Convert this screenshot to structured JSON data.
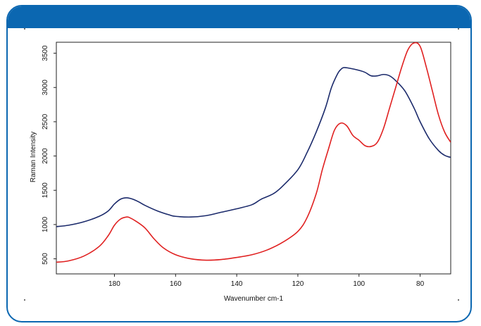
{
  "colors": {
    "frame": "#0b67b1",
    "series_navy": "#1b2a6b",
    "series_red": "#e02020"
  },
  "chart_data": {
    "type": "line",
    "title": "",
    "xlabel": "Wavenumber cm-1",
    "ylabel": "Raman Intensity",
    "xlim": [
      199,
      70
    ],
    "ylim": [
      280,
      3660
    ],
    "x_reversed": true,
    "grid": false,
    "legend": "none",
    "x_ticks": [
      180,
      160,
      140,
      120,
      100,
      80
    ],
    "y_ticks": [
      500,
      1000,
      1500,
      2000,
      2500,
      3000,
      3500
    ],
    "series": [
      {
        "color": "#1b2a6b",
        "x": [
          199,
          195,
          190,
          185,
          182,
          180,
          178,
          176,
          174,
          172,
          170,
          166,
          162,
          160,
          155,
          150,
          145,
          140,
          135,
          132,
          128,
          125,
          120,
          117,
          114,
          111,
          109,
          107,
          106,
          105,
          103,
          100,
          98,
          96,
          94,
          92,
          90,
          88,
          85,
          82,
          80,
          77,
          74,
          72,
          70
        ],
        "y": [
          970,
          990,
          1040,
          1120,
          1200,
          1300,
          1370,
          1390,
          1370,
          1330,
          1280,
          1200,
          1140,
          1120,
          1110,
          1130,
          1180,
          1230,
          1290,
          1370,
          1450,
          1560,
          1800,
          2050,
          2350,
          2700,
          3000,
          3200,
          3260,
          3290,
          3280,
          3250,
          3220,
          3170,
          3170,
          3190,
          3170,
          3100,
          2950,
          2700,
          2500,
          2250,
          2080,
          2010,
          1980
        ]
      },
      {
        "color": "#e02020",
        "x": [
          199,
          195,
          190,
          185,
          182,
          180,
          178,
          176,
          175,
          173,
          170,
          167,
          164,
          160,
          155,
          150,
          145,
          140,
          135,
          130,
          125,
          120,
          117,
          114,
          112,
          110,
          108,
          106,
          104,
          102,
          100,
          98,
          96,
          94,
          92,
          90,
          88,
          86,
          84,
          82,
          80,
          78,
          76,
          74,
          72,
          70
        ],
        "y": [
          450,
          470,
          540,
          680,
          840,
          990,
          1080,
          1110,
          1100,
          1050,
          950,
          790,
          660,
          560,
          500,
          480,
          490,
          520,
          560,
          630,
          740,
          900,
          1100,
          1450,
          1800,
          2100,
          2380,
          2480,
          2440,
          2300,
          2230,
          2150,
          2140,
          2200,
          2400,
          2700,
          3000,
          3300,
          3550,
          3650,
          3600,
          3300,
          2950,
          2600,
          2350,
          2200
        ]
      }
    ]
  }
}
